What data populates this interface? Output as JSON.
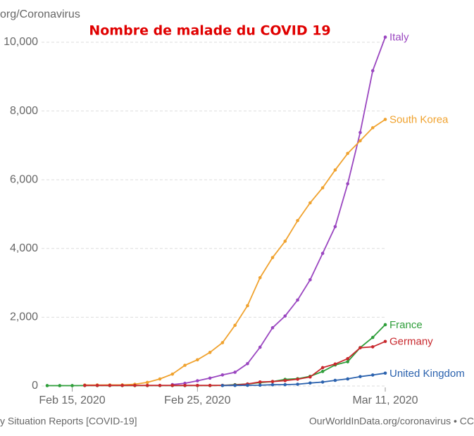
{
  "chart_data": {
    "type": "line",
    "title": "Nombre de malade du COVID 19",
    "subtitle": "org/Coronavirus",
    "source": "y Situation Reports [COVID-19]",
    "credit": "OurWorldInData.org/coronavirus • CC",
    "x": [
      "2020-02-13",
      "2020-02-14",
      "2020-02-15",
      "2020-02-16",
      "2020-02-17",
      "2020-02-18",
      "2020-02-19",
      "2020-02-20",
      "2020-02-21",
      "2020-02-22",
      "2020-02-23",
      "2020-02-24",
      "2020-02-25",
      "2020-02-26",
      "2020-02-27",
      "2020-02-28",
      "2020-02-29",
      "2020-03-01",
      "2020-03-02",
      "2020-03-03",
      "2020-03-04",
      "2020-03-05",
      "2020-03-06",
      "2020-03-07",
      "2020-03-08",
      "2020-03-09",
      "2020-03-10",
      "2020-03-11"
    ],
    "xlim": [
      "2020-02-13",
      "2020-03-11"
    ],
    "xticks": [
      {
        "value": "2020-02-15",
        "label": "Feb 15, 2020"
      },
      {
        "value": "2020-02-25",
        "label": "Feb 25, 2020"
      },
      {
        "value": "2020-03-11",
        "label": "Mar 11, 2020"
      }
    ],
    "ylim": [
      0,
      10000
    ],
    "yticks": [
      0,
      {
        "value": 2000,
        "label": "2,000"
      },
      {
        "value": 4000,
        "label": "4,000"
      },
      {
        "value": 6000,
        "label": "6,000"
      },
      {
        "value": 8000,
        "label": "8,000"
      },
      {
        "value": 10000,
        "label": "10,000"
      }
    ],
    "grid": true,
    "series": [
      {
        "name": "Italy",
        "color": "#9a46c0",
        "values": [
          null,
          null,
          null,
          null,
          null,
          null,
          null,
          null,
          null,
          null,
          40,
          79,
          152,
          229,
          322,
          400,
          650,
          1128,
          1694,
          2036,
          2502,
          3089,
          3858,
          4636,
          5883,
          7375,
          9172,
          10149
        ]
      },
      {
        "name": "South Korea",
        "color": "#f0a22e",
        "values": [
          null,
          null,
          null,
          28,
          29,
          30,
          31,
          51,
          104,
          204,
          346,
          602,
          763,
          977,
          1261,
          1766,
          2337,
          3150,
          3736,
          4212,
          4812,
          5328,
          5766,
          6284,
          6767,
          7134,
          7513,
          7755
        ]
      },
      {
        "name": "France",
        "color": "#2e9e3a",
        "values": [
          11,
          11,
          11,
          12,
          12,
          12,
          12,
          12,
          12,
          12,
          12,
          12,
          12,
          12,
          18,
          38,
          57,
          100,
          130,
          191,
          212,
          282,
          423,
          613,
          706,
          1116,
          1412,
          1784
        ]
      },
      {
        "name": "Germany",
        "color": "#c8282d",
        "values": [
          null,
          null,
          null,
          16,
          16,
          16,
          16,
          16,
          16,
          16,
          16,
          16,
          16,
          16,
          18,
          26,
          57,
          117,
          129,
          157,
          196,
          262,
          534,
          639,
          795,
          1112,
          1139,
          1296
        ]
      },
      {
        "name": "United Kingdom",
        "color": "#2b62ae",
        "values": [
          null,
          null,
          null,
          null,
          null,
          null,
          null,
          null,
          null,
          null,
          null,
          null,
          null,
          null,
          13,
          16,
          20,
          23,
          36,
          39,
          51,
          87,
          115,
          164,
          206,
          273,
          319,
          373
        ]
      }
    ]
  }
}
